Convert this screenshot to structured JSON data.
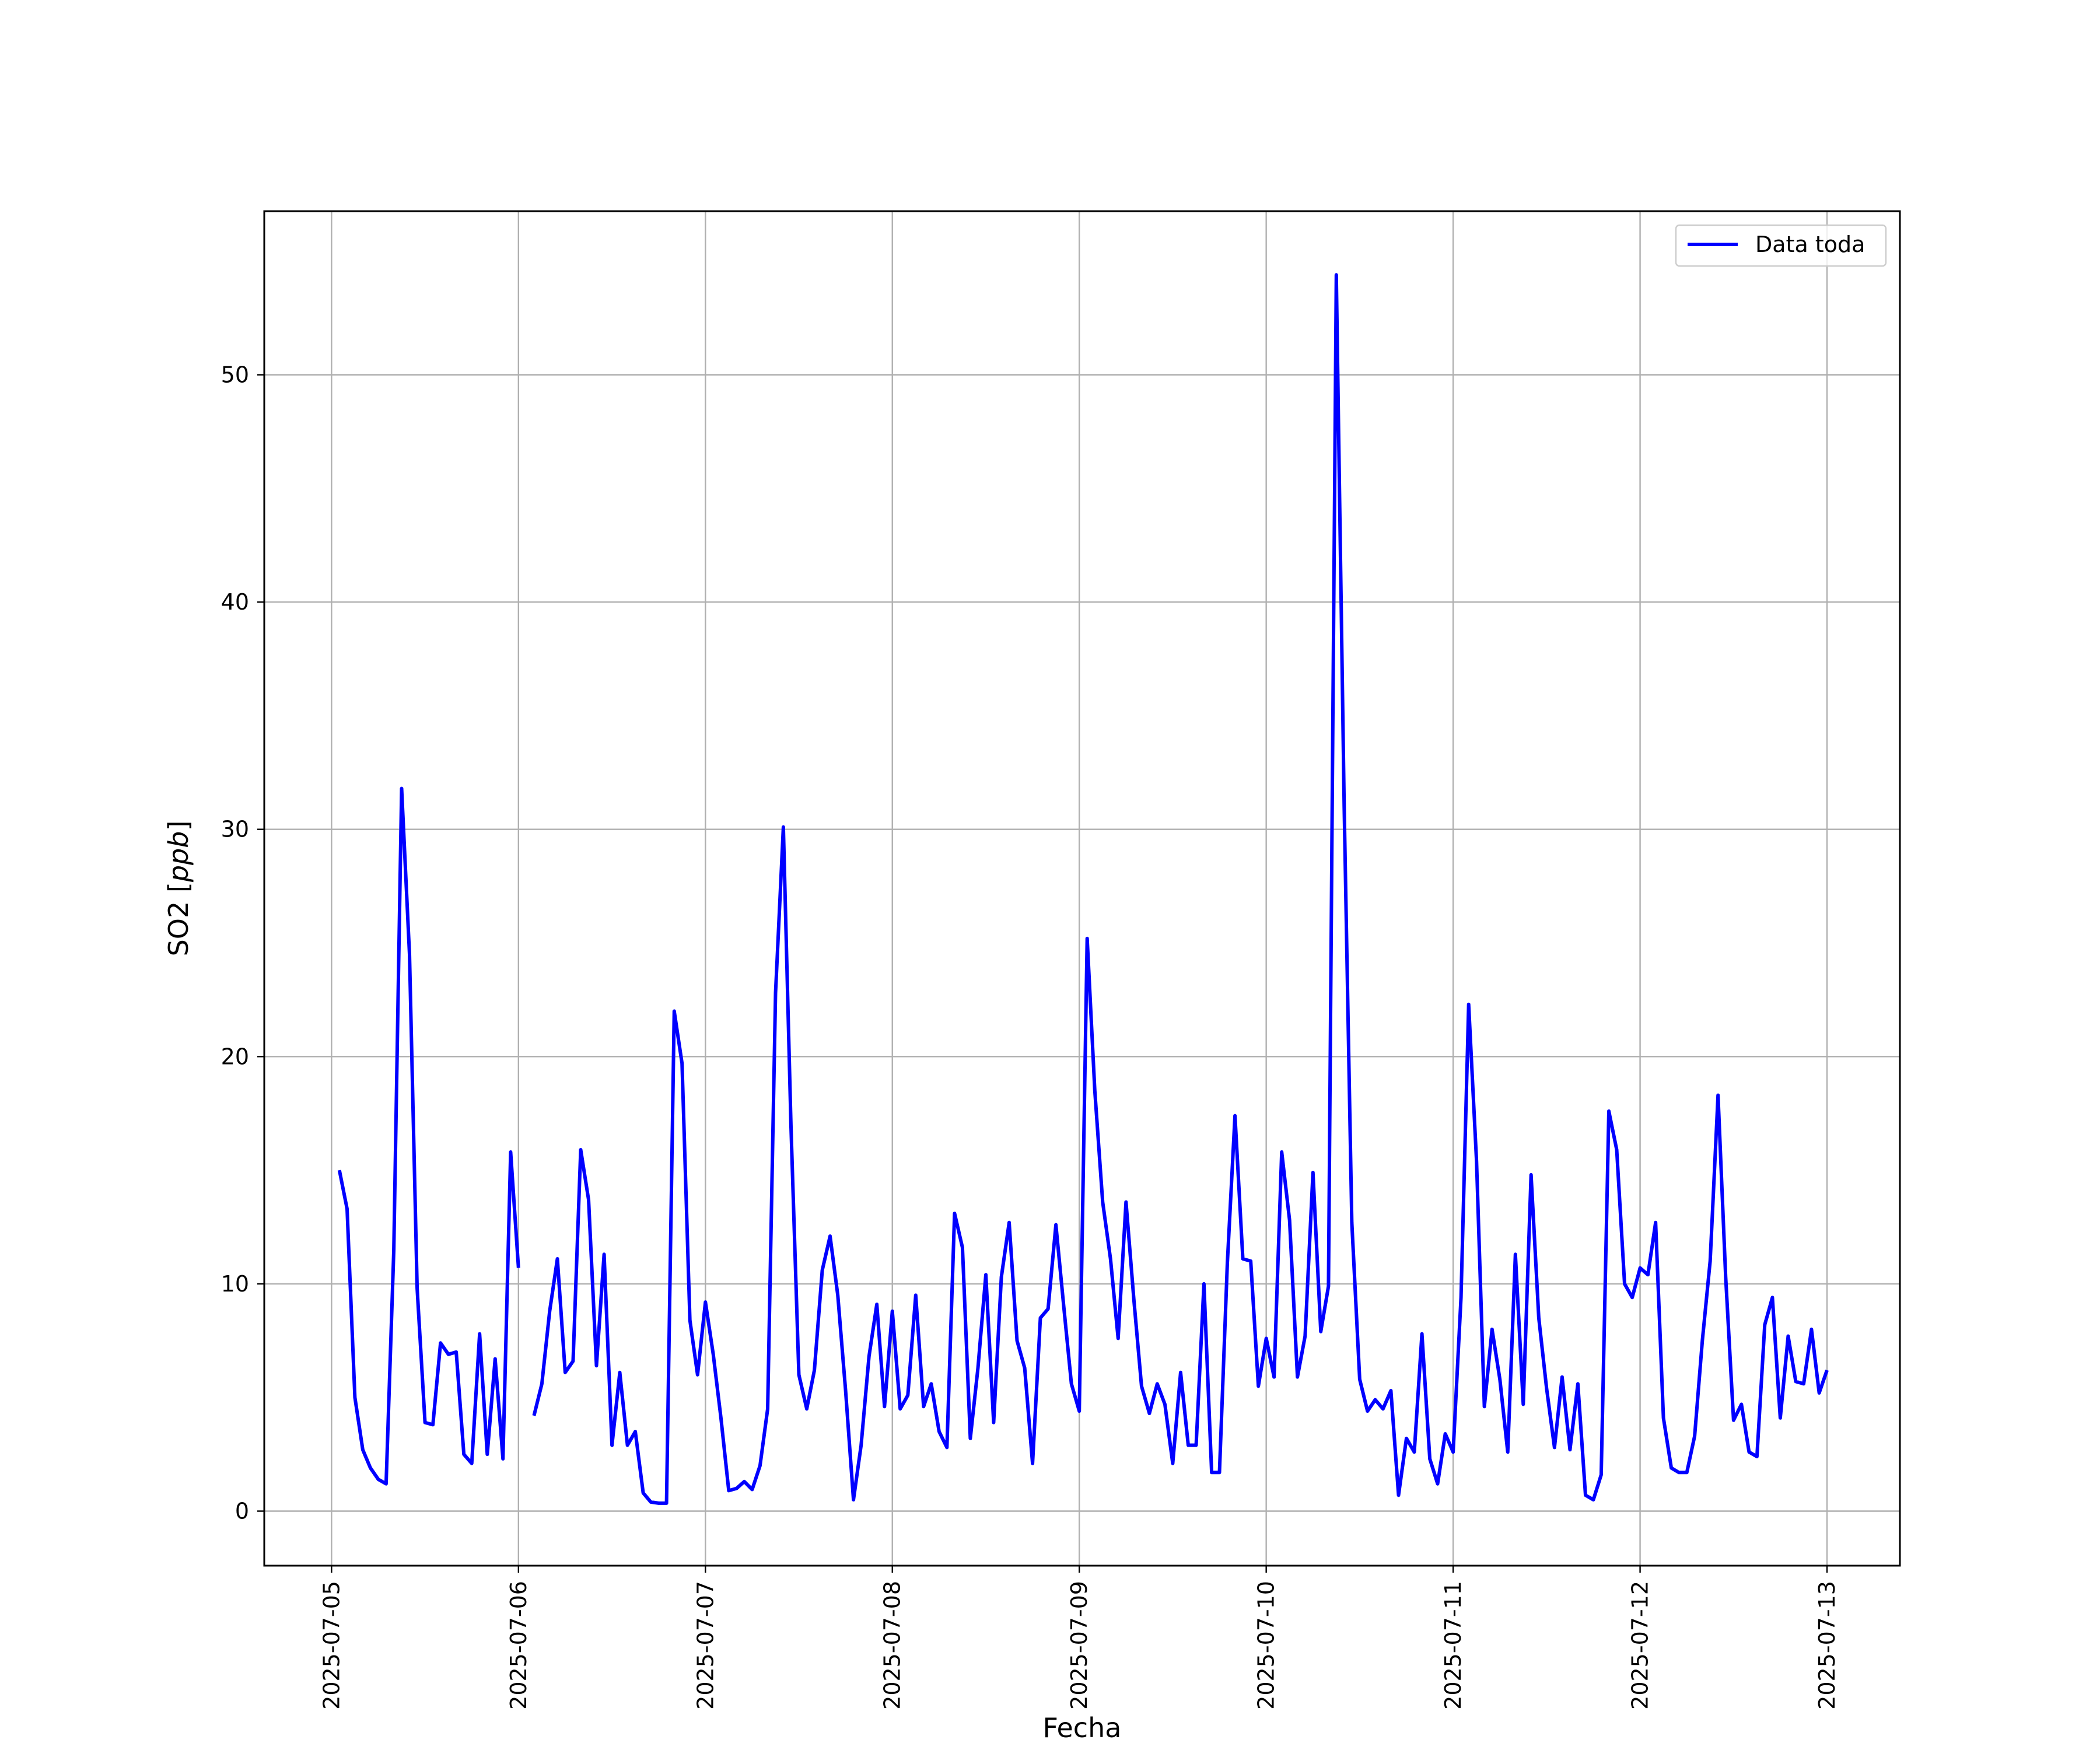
{
  "chart_data": {
    "type": "line",
    "xlabel": "Fecha",
    "ylabel_main": "SO2 [",
    "ylabel_italic": "ppb",
    "ylabel_close": "]",
    "x_tick_labels": [
      "2025-07-05",
      "2025-07-06",
      "2025-07-07",
      "2025-07-08",
      "2025-07-09",
      "2025-07-10",
      "2025-07-11",
      "2025-07-12",
      "2025-07-13"
    ],
    "y_ticks": [
      0,
      10,
      20,
      30,
      40,
      50
    ],
    "xlim_days": [
      -0.36,
      8.39
    ],
    "ylim": [
      -2.4,
      57.2
    ],
    "grid": true,
    "legend_position": "upper-right",
    "series": [
      {
        "name": "Data toda",
        "color": "#0000ff",
        "segments": [
          [
            [
              0.042,
              15.0
            ],
            [
              0.083,
              13.3
            ],
            [
              0.125,
              5.0
            ],
            [
              0.167,
              2.7
            ],
            [
              0.208,
              1.9
            ],
            [
              0.25,
              1.4
            ],
            [
              0.292,
              1.2
            ],
            [
              0.333,
              11.5
            ],
            [
              0.375,
              31.8
            ],
            [
              0.417,
              24.5
            ],
            [
              0.458,
              9.8
            ],
            [
              0.5,
              3.9
            ],
            [
              0.542,
              3.8
            ],
            [
              0.583,
              7.4
            ],
            [
              0.625,
              6.9
            ],
            [
              0.667,
              7.0
            ],
            [
              0.708,
              2.5
            ],
            [
              0.75,
              2.1
            ],
            [
              0.792,
              7.8
            ],
            [
              0.833,
              2.5
            ],
            [
              0.875,
              6.7
            ],
            [
              0.917,
              2.3
            ],
            [
              0.958,
              15.8
            ],
            [
              1.0,
              10.7
            ]
          ],
          [
            [
              1.083,
              4.2
            ],
            [
              1.125,
              5.6
            ],
            [
              1.167,
              8.8
            ],
            [
              1.208,
              11.1
            ],
            [
              1.25,
              6.1
            ],
            [
              1.292,
              6.6
            ],
            [
              1.333,
              15.9
            ],
            [
              1.375,
              13.7
            ],
            [
              1.417,
              6.4
            ],
            [
              1.458,
              11.3
            ],
            [
              1.5,
              2.9
            ],
            [
              1.542,
              6.1
            ],
            [
              1.583,
              2.9
            ],
            [
              1.625,
              3.5
            ],
            [
              1.667,
              0.8
            ],
            [
              1.708,
              0.4
            ],
            [
              1.75,
              0.35
            ],
            [
              1.792,
              0.35
            ],
            [
              1.833,
              22.0
            ],
            [
              1.875,
              19.7
            ],
            [
              1.917,
              8.4
            ],
            [
              1.958,
              6.0
            ],
            [
              2.0,
              9.2
            ],
            [
              2.042,
              6.9
            ],
            [
              2.083,
              4.1
            ],
            [
              2.125,
              0.9
            ],
            [
              2.167,
              1.0
            ],
            [
              2.208,
              1.3
            ],
            [
              2.25,
              0.95
            ],
            [
              2.292,
              2.0
            ],
            [
              2.333,
              4.5
            ],
            [
              2.375,
              22.8
            ],
            [
              2.417,
              30.1
            ],
            [
              2.458,
              16.9
            ],
            [
              2.5,
              6.0
            ],
            [
              2.542,
              4.5
            ],
            [
              2.583,
              6.2
            ],
            [
              2.625,
              10.6
            ],
            [
              2.667,
              12.1
            ],
            [
              2.708,
              9.5
            ],
            [
              2.75,
              5.3
            ],
            [
              2.792,
              0.5
            ],
            [
              2.833,
              2.9
            ],
            [
              2.875,
              6.8
            ],
            [
              2.917,
              9.1
            ],
            [
              2.958,
              4.6
            ],
            [
              3.0,
              8.8
            ],
            [
              3.042,
              4.5
            ],
            [
              3.083,
              5.1
            ],
            [
              3.125,
              9.5
            ],
            [
              3.167,
              4.6
            ],
            [
              3.208,
              5.6
            ],
            [
              3.25,
              3.5
            ],
            [
              3.292,
              2.8
            ],
            [
              3.333,
              13.1
            ],
            [
              3.375,
              11.6
            ],
            [
              3.417,
              3.2
            ],
            [
              3.458,
              6.3
            ],
            [
              3.5,
              10.4
            ],
            [
              3.542,
              3.9
            ],
            [
              3.583,
              10.3
            ],
            [
              3.625,
              12.7
            ],
            [
              3.667,
              7.5
            ],
            [
              3.708,
              6.3
            ],
            [
              3.75,
              2.1
            ],
            [
              3.792,
              8.5
            ],
            [
              3.833,
              8.9
            ],
            [
              3.875,
              12.6
            ],
            [
              3.917,
              9.0
            ],
            [
              3.958,
              5.6
            ],
            [
              4.0,
              4.4
            ],
            [
              4.042,
              25.2
            ],
            [
              4.083,
              18.5
            ],
            [
              4.125,
              13.6
            ],
            [
              4.167,
              11.1
            ],
            [
              4.208,
              7.6
            ],
            [
              4.25,
              13.6
            ],
            [
              4.292,
              9.3
            ],
            [
              4.333,
              5.5
            ],
            [
              4.375,
              4.3
            ],
            [
              4.417,
              5.6
            ],
            [
              4.458,
              4.7
            ],
            [
              4.5,
              2.1
            ],
            [
              4.542,
              6.1
            ],
            [
              4.583,
              2.9
            ],
            [
              4.625,
              2.9
            ],
            [
              4.667,
              10.0
            ],
            [
              4.708,
              1.7
            ],
            [
              4.75,
              1.7
            ],
            [
              4.792,
              10.9
            ],
            [
              4.833,
              17.4
            ],
            [
              4.875,
              11.1
            ],
            [
              4.917,
              11.0
            ],
            [
              4.958,
              5.5
            ],
            [
              5.0,
              7.6
            ],
            [
              5.042,
              5.9
            ],
            [
              5.083,
              15.8
            ],
            [
              5.125,
              12.8
            ],
            [
              5.167,
              5.9
            ],
            [
              5.208,
              7.7
            ],
            [
              5.25,
              14.9
            ],
            [
              5.292,
              7.9
            ],
            [
              5.333,
              9.9
            ],
            [
              5.375,
              54.4
            ],
            [
              5.417,
              31.0
            ],
            [
              5.458,
              12.7
            ],
            [
              5.5,
              5.8
            ],
            [
              5.542,
              4.4
            ],
            [
              5.583,
              4.9
            ],
            [
              5.625,
              4.5
            ],
            [
              5.667,
              5.3
            ],
            [
              5.708,
              0.7
            ],
            [
              5.75,
              3.2
            ],
            [
              5.792,
              2.6
            ],
            [
              5.833,
              7.8
            ],
            [
              5.875,
              2.3
            ],
            [
              5.917,
              1.2
            ],
            [
              5.958,
              3.4
            ],
            [
              6.0,
              2.6
            ],
            [
              6.042,
              9.4
            ],
            [
              6.083,
              22.3
            ],
            [
              6.125,
              15.4
            ],
            [
              6.167,
              4.6
            ],
            [
              6.208,
              8.0
            ],
            [
              6.25,
              5.8
            ],
            [
              6.292,
              2.6
            ],
            [
              6.333,
              11.3
            ],
            [
              6.375,
              4.7
            ],
            [
              6.417,
              14.8
            ],
            [
              6.458,
              8.5
            ],
            [
              6.5,
              5.4
            ],
            [
              6.542,
              2.8
            ],
            [
              6.583,
              5.9
            ],
            [
              6.625,
              2.7
            ],
            [
              6.667,
              5.6
            ],
            [
              6.708,
              0.7
            ],
            [
              6.75,
              0.5
            ],
            [
              6.792,
              1.6
            ],
            [
              6.833,
              17.6
            ],
            [
              6.875,
              15.9
            ],
            [
              6.917,
              10.0
            ],
            [
              6.958,
              9.4
            ],
            [
              7.0,
              10.7
            ],
            [
              7.042,
              10.4
            ],
            [
              7.083,
              12.7
            ],
            [
              7.125,
              4.1
            ],
            [
              7.167,
              1.9
            ],
            [
              7.208,
              1.7
            ],
            [
              7.25,
              1.7
            ],
            [
              7.292,
              3.3
            ],
            [
              7.333,
              7.5
            ],
            [
              7.375,
              11.0
            ],
            [
              7.417,
              18.3
            ],
            [
              7.458,
              10.3
            ],
            [
              7.5,
              4.0
            ],
            [
              7.542,
              4.7
            ],
            [
              7.583,
              2.6
            ],
            [
              7.625,
              2.4
            ],
            [
              7.667,
              8.2
            ],
            [
              7.708,
              9.4
            ],
            [
              7.75,
              4.1
            ],
            [
              7.792,
              7.7
            ],
            [
              7.833,
              5.7
            ],
            [
              7.875,
              5.6
            ],
            [
              7.917,
              8.0
            ],
            [
              7.958,
              5.2
            ],
            [
              8.0,
              6.2
            ]
          ]
        ]
      }
    ]
  }
}
